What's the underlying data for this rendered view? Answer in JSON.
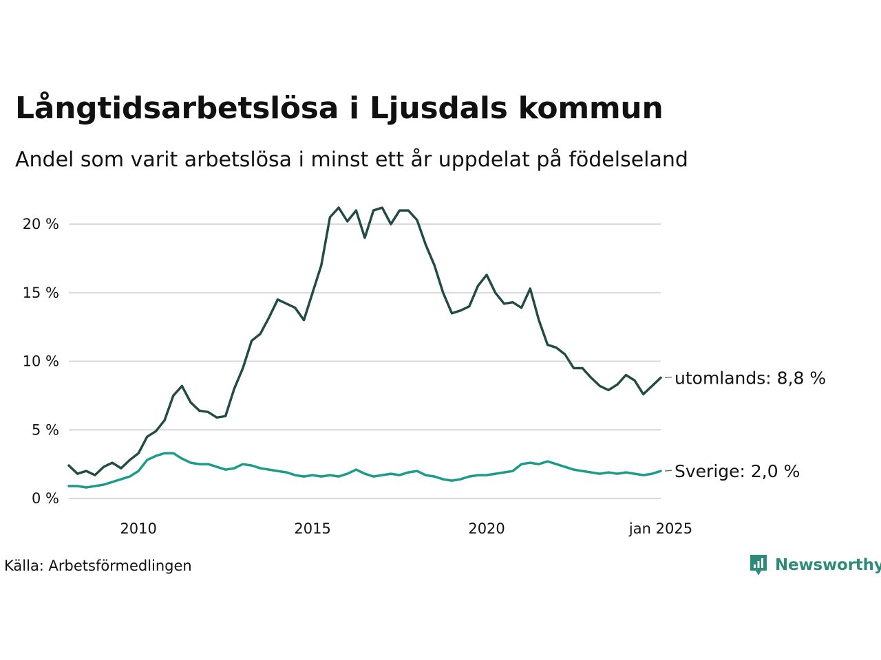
{
  "title": "Långtidsarbetslösa i Ljusdals kommun",
  "subtitle": "Andel som varit arbetslösa i minst ett år uppdelat på födelseland",
  "source": "Källa: Arbetsförmedlingen",
  "brand": {
    "name": "Newsworthy",
    "icon": "newsworthy-logo-icon",
    "color": "#2e8b7a"
  },
  "chart_data": {
    "type": "line",
    "title": "Långtidsarbetslösa i Ljusdals kommun",
    "subtitle": "Andel som varit arbetslösa i minst ett år uppdelat på födelseland",
    "x_range": [
      "2008-01",
      "2025-01"
    ],
    "x_ticks": [
      {
        "x": "2010-01",
        "label": "2010"
      },
      {
        "x": "2015-01",
        "label": "2015"
      },
      {
        "x": "2020-01",
        "label": "2020"
      },
      {
        "x": "2025-01",
        "label": "jan 2025"
      }
    ],
    "ylim": [
      0,
      22
    ],
    "y_ticks": [
      {
        "value": 0,
        "label": "0 %"
      },
      {
        "value": 5,
        "label": "5 %"
      },
      {
        "value": 10,
        "label": "10 %"
      },
      {
        "value": 15,
        "label": "15 %"
      },
      {
        "value": 20,
        "label": "20 %"
      }
    ],
    "grid": "horizontal",
    "legend": "end-labels",
    "series": [
      {
        "name": "utomlands",
        "color": "#224b46",
        "end_label": "utomlands: 8,8 %",
        "x": [
          "2008-01",
          "2008-04",
          "2008-07",
          "2008-10",
          "2009-01",
          "2009-04",
          "2009-07",
          "2009-10",
          "2010-01",
          "2010-04",
          "2010-07",
          "2010-10",
          "2011-01",
          "2011-04",
          "2011-07",
          "2011-10",
          "2012-01",
          "2012-04",
          "2012-07",
          "2012-10",
          "2013-01",
          "2013-04",
          "2013-07",
          "2013-10",
          "2014-01",
          "2014-04",
          "2014-07",
          "2014-10",
          "2015-01",
          "2015-04",
          "2015-07",
          "2015-10",
          "2016-01",
          "2016-04",
          "2016-07",
          "2016-10",
          "2017-01",
          "2017-04",
          "2017-07",
          "2017-10",
          "2018-01",
          "2018-04",
          "2018-07",
          "2018-10",
          "2019-01",
          "2019-04",
          "2019-07",
          "2019-10",
          "2020-01",
          "2020-04",
          "2020-07",
          "2020-10",
          "2021-01",
          "2021-04",
          "2021-07",
          "2021-10",
          "2022-01",
          "2022-04",
          "2022-07",
          "2022-10",
          "2023-01",
          "2023-04",
          "2023-07",
          "2023-10",
          "2024-01",
          "2024-04",
          "2024-07",
          "2024-10",
          "2025-01"
        ],
        "values": [
          2.4,
          1.8,
          2.0,
          1.7,
          2.3,
          2.6,
          2.2,
          2.8,
          3.3,
          4.5,
          4.9,
          5.7,
          7.5,
          8.2,
          7.0,
          6.4,
          6.3,
          5.9,
          6.0,
          8.0,
          9.5,
          11.5,
          12.0,
          13.2,
          14.5,
          14.2,
          13.9,
          13.0,
          15.0,
          17.0,
          20.5,
          21.2,
          20.2,
          21.0,
          19.0,
          21.0,
          21.2,
          20.0,
          21.0,
          21.0,
          20.3,
          18.5,
          17.0,
          15.0,
          13.5,
          13.7,
          14.0,
          15.5,
          16.3,
          15.0,
          14.2,
          14.3,
          13.9,
          15.3,
          13.0,
          11.2,
          11.0,
          10.5,
          9.5,
          9.5,
          8.8,
          8.2,
          7.9,
          8.3,
          9.0,
          8.6,
          7.6,
          8.2,
          8.8
        ]
      },
      {
        "name": "Sverige",
        "color": "#1a9c88",
        "end_label": "Sverige: 2,0 %",
        "x": [
          "2008-01",
          "2008-04",
          "2008-07",
          "2008-10",
          "2009-01",
          "2009-04",
          "2009-07",
          "2009-10",
          "2010-01",
          "2010-04",
          "2010-07",
          "2010-10",
          "2011-01",
          "2011-04",
          "2011-07",
          "2011-10",
          "2012-01",
          "2012-04",
          "2012-07",
          "2012-10",
          "2013-01",
          "2013-04",
          "2013-07",
          "2013-10",
          "2014-01",
          "2014-04",
          "2014-07",
          "2014-10",
          "2015-01",
          "2015-04",
          "2015-07",
          "2015-10",
          "2016-01",
          "2016-04",
          "2016-07",
          "2016-10",
          "2017-01",
          "2017-04",
          "2017-07",
          "2017-10",
          "2018-01",
          "2018-04",
          "2018-07",
          "2018-10",
          "2019-01",
          "2019-04",
          "2019-07",
          "2019-10",
          "2020-01",
          "2020-04",
          "2020-07",
          "2020-10",
          "2021-01",
          "2021-04",
          "2021-07",
          "2021-10",
          "2022-01",
          "2022-04",
          "2022-07",
          "2022-10",
          "2023-01",
          "2023-04",
          "2023-07",
          "2023-10",
          "2024-01",
          "2024-04",
          "2024-07",
          "2024-10",
          "2025-01"
        ],
        "values": [
          0.9,
          0.9,
          0.8,
          0.9,
          1.0,
          1.2,
          1.4,
          1.6,
          2.0,
          2.8,
          3.1,
          3.3,
          3.3,
          2.9,
          2.6,
          2.5,
          2.5,
          2.3,
          2.1,
          2.2,
          2.5,
          2.4,
          2.2,
          2.1,
          2.0,
          1.9,
          1.7,
          1.6,
          1.7,
          1.6,
          1.7,
          1.6,
          1.8,
          2.1,
          1.8,
          1.6,
          1.7,
          1.8,
          1.7,
          1.9,
          2.0,
          1.7,
          1.6,
          1.4,
          1.3,
          1.4,
          1.6,
          1.7,
          1.7,
          1.8,
          1.9,
          2.0,
          2.5,
          2.6,
          2.5,
          2.7,
          2.5,
          2.3,
          2.1,
          2.0,
          1.9,
          1.8,
          1.9,
          1.8,
          1.9,
          1.8,
          1.7,
          1.8,
          2.0
        ]
      }
    ]
  }
}
